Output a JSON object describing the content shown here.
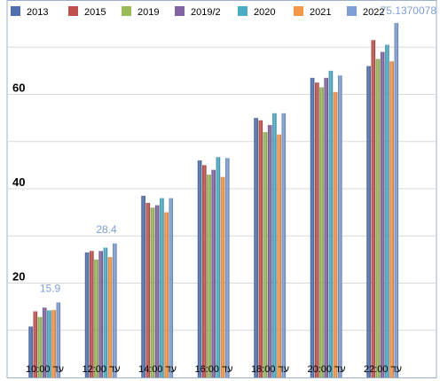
{
  "chart_data": {
    "type": "bar",
    "categories": [
      "10:00 עד",
      "12:00 עד",
      "14:00 עד",
      "16:00 עד",
      "18:00 עד",
      "20:00 עד",
      "22:00 עד"
    ],
    "series": [
      {
        "name": "2013",
        "color": "#4f6fae",
        "values": [
          10.8,
          26.5,
          38.5,
          46.0,
          55.0,
          63.5,
          66.0
        ]
      },
      {
        "name": "2015",
        "color": "#c0504d",
        "values": [
          14.0,
          26.8,
          37.0,
          45.0,
          54.5,
          62.5,
          71.5
        ]
      },
      {
        "name": "2019",
        "color": "#9bbb59",
        "values": [
          12.8,
          25.0,
          36.0,
          43.0,
          52.0,
          61.5,
          67.5
        ]
      },
      {
        "name": "2019/2",
        "color": "#8064a2",
        "values": [
          14.8,
          26.8,
          36.5,
          44.0,
          53.5,
          63.5,
          69.0
        ]
      },
      {
        "name": "2020",
        "color": "#4bacc6",
        "values": [
          14.2,
          27.5,
          38.0,
          46.7,
          56.0,
          65.0,
          70.5
        ]
      },
      {
        "name": "2021",
        "color": "#f79646",
        "values": [
          14.3,
          25.5,
          35.0,
          42.5,
          51.5,
          60.5,
          67.0
        ]
      },
      {
        "name": "2022",
        "color": "#7f9fd4",
        "values": [
          15.9,
          28.4,
          38.0,
          46.5,
          56.0,
          64.0,
          75.1370078
        ]
      }
    ],
    "data_labels": [
      {
        "series": "2022",
        "category": "10:00 עד",
        "text": "15.9"
      },
      {
        "series": "2022",
        "category": "12:00 עד",
        "text": "28.4"
      },
      {
        "series": "2022",
        "category": "22:00 עד",
        "text": "75.1370078"
      }
    ],
    "yticks": [
      "20",
      "40",
      "60"
    ],
    "ylim": [
      0,
      80
    ],
    "legend_position": "top",
    "grid": true
  }
}
